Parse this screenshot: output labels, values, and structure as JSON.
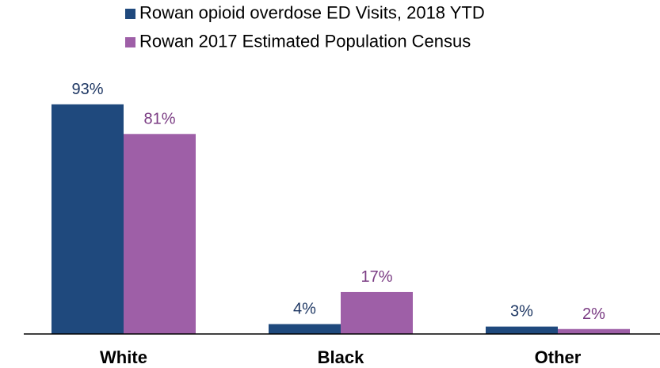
{
  "chart_data": {
    "type": "bar",
    "categories": [
      "White",
      "Black",
      "Other"
    ],
    "series": [
      {
        "name": "Rowan opioid overdose ED Visits, 2018 YTD",
        "values": [
          93,
          4,
          3
        ],
        "labels": [
          "93%",
          "4%",
          "3%"
        ],
        "color": "#1f497d"
      },
      {
        "name": "Rowan 2017 Estimated Population Census",
        "values": [
          81,
          17,
          2
        ],
        "labels": [
          "81%",
          "17%",
          "2%"
        ],
        "color": "#9e5fa7"
      }
    ],
    "ylim": [
      0,
      100
    ],
    "grid": false,
    "legend_position": "top",
    "label_colors": [
      "#1f3864",
      "#7a3b83"
    ]
  }
}
